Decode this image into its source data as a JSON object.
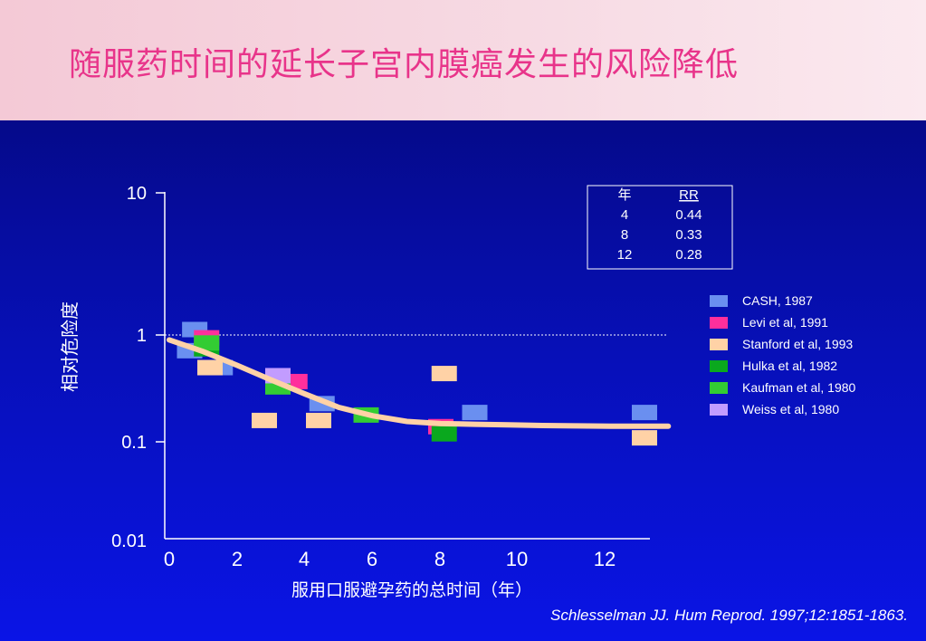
{
  "title": "随服药时间的延长子宫内膜癌发生的风险降低",
  "citation": "Schlesselman JJ. Hum Reprod. 1997;12:1851-1863.",
  "rr_table": {
    "headers": [
      "年",
      "RR"
    ],
    "rows": [
      [
        "4",
        "0.44"
      ],
      [
        "8",
        "0.33"
      ],
      [
        "12",
        "0.28"
      ]
    ]
  },
  "chart_data": {
    "type": "scatter",
    "title": "",
    "xlabel": "服用口服避孕药的总时间（年）",
    "ylabel": "相对危险度",
    "x_ticks": [
      "0",
      "2",
      "4",
      "6",
      "8",
      "10",
      "12"
    ],
    "y_ticks": [
      "10",
      "1",
      "0.1",
      "0.01"
    ],
    "y_scale": "log",
    "xlim": [
      0,
      14
    ],
    "reference_line_y": 1,
    "series": [
      {
        "name": "CASH, 1987",
        "color": "#6a8ff0",
        "points": [
          [
            0.6,
            0.72
          ],
          [
            0.75,
            1.1
          ],
          [
            1.5,
            0.5
          ],
          [
            4.5,
            0.23
          ],
          [
            9,
            0.19
          ],
          [
            14,
            0.19
          ]
        ]
      },
      {
        "name": "Levi et al, 1991",
        "color": "#ff2f9c",
        "points": [
          [
            1.1,
            0.95
          ],
          [
            3.7,
            0.37
          ],
          [
            8,
            0.14
          ]
        ]
      },
      {
        "name": "Stanford et al, 1993",
        "color": "#ffd2a6",
        "points": [
          [
            1.2,
            0.5
          ],
          [
            2.8,
            0.16
          ],
          [
            4.4,
            0.16
          ],
          [
            8.1,
            0.44
          ],
          [
            14,
            0.11
          ]
        ]
      },
      {
        "name": "Hulka et al, 1982",
        "color": "#0aa81e",
        "points": [
          [
            1.1,
            0.75
          ],
          [
            8.1,
            0.12
          ]
        ]
      },
      {
        "name": "Kaufman et al, 1980",
        "color": "#33cc33",
        "points": [
          [
            1.1,
            0.85
          ],
          [
            3.2,
            0.33
          ],
          [
            5.8,
            0.18
          ]
        ]
      },
      {
        "name": "Weiss et al, 1980",
        "color": "#c29cff",
        "points": [
          [
            3.2,
            0.42
          ]
        ]
      }
    ],
    "trend_line": {
      "color": "#ffd2a6",
      "points": [
        [
          0,
          0.9
        ],
        [
          1,
          0.7
        ],
        [
          2,
          0.52
        ],
        [
          3,
          0.38
        ],
        [
          4,
          0.28
        ],
        [
          5,
          0.21
        ],
        [
          6,
          0.175
        ],
        [
          7,
          0.155
        ],
        [
          8,
          0.148
        ],
        [
          9,
          0.146
        ],
        [
          10,
          0.144
        ],
        [
          11,
          0.142
        ],
        [
          12,
          0.141
        ],
        [
          13,
          0.14
        ],
        [
          14.7,
          0.14
        ]
      ]
    },
    "legend_position": "right"
  }
}
